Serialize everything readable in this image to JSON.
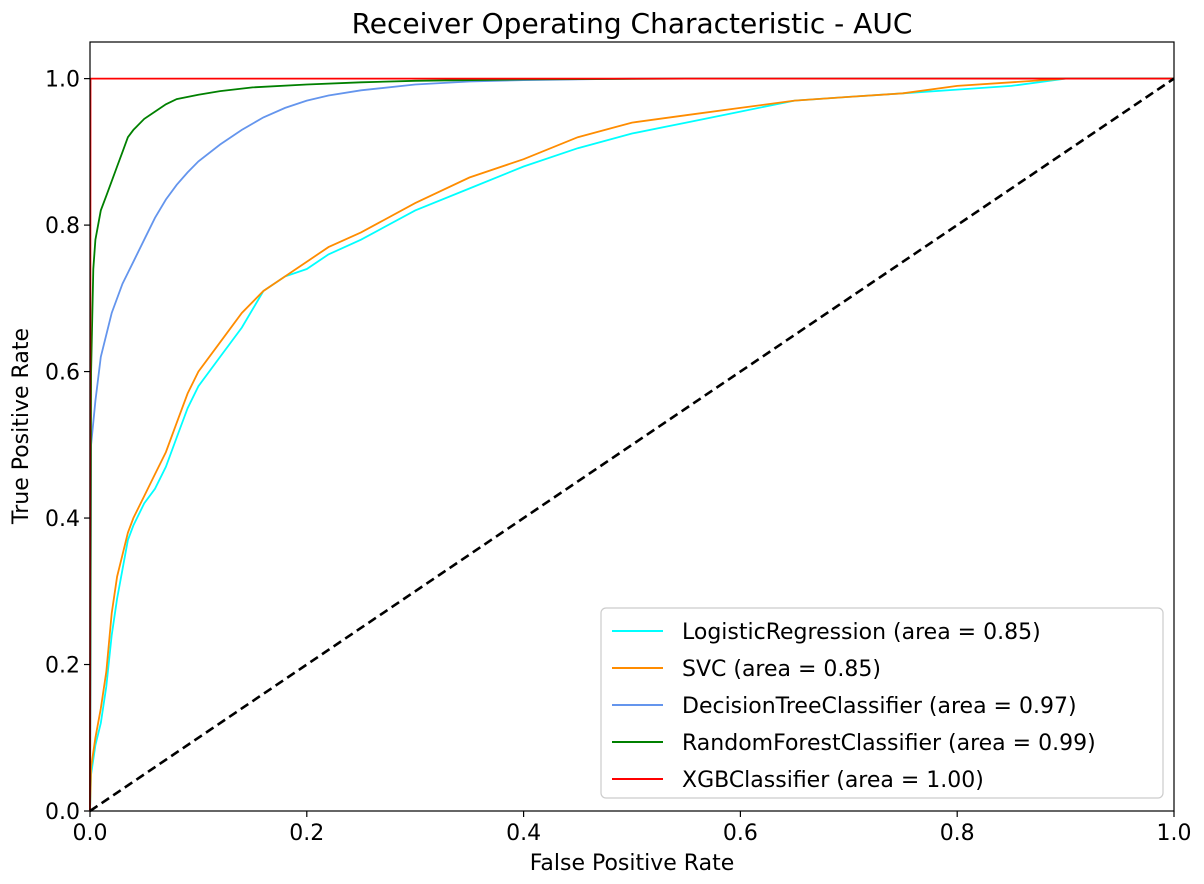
{
  "chart_data": {
    "type": "line",
    "title": "Receiver Operating Characteristic - AUC",
    "xlabel": "False Positive Rate",
    "ylabel": "True Positive Rate",
    "xlim": [
      0.0,
      1.0
    ],
    "ylim": [
      0.0,
      1.05
    ],
    "xticks": [
      "0.0",
      "0.2",
      "0.4",
      "0.6",
      "0.8",
      "1.0"
    ],
    "yticks": [
      "0.0",
      "0.2",
      "0.4",
      "0.6",
      "0.8",
      "1.0"
    ],
    "grid": false,
    "legend_position": "lower-right",
    "series": [
      {
        "name": "LogisticRegression (area = 0.85)",
        "color": "#00ffff",
        "x": [
          0,
          0.001,
          0.005,
          0.01,
          0.015,
          0.02,
          0.025,
          0.03,
          0.035,
          0.04,
          0.05,
          0.06,
          0.07,
          0.08,
          0.09,
          0.1,
          0.12,
          0.14,
          0.16,
          0.18,
          0.2,
          0.22,
          0.25,
          0.3,
          0.35,
          0.4,
          0.45,
          0.5,
          0.55,
          0.6,
          0.65,
          0.7,
          0.75,
          0.8,
          0.85,
          0.9,
          1.0
        ],
        "y": [
          0,
          0.05,
          0.09,
          0.12,
          0.17,
          0.24,
          0.29,
          0.33,
          0.37,
          0.39,
          0.42,
          0.44,
          0.47,
          0.51,
          0.55,
          0.58,
          0.62,
          0.66,
          0.71,
          0.73,
          0.74,
          0.76,
          0.78,
          0.82,
          0.85,
          0.88,
          0.905,
          0.925,
          0.94,
          0.955,
          0.97,
          0.975,
          0.98,
          0.985,
          0.99,
          1.0,
          1.0
        ]
      },
      {
        "name": "SVC (area = 0.85)",
        "color": "#ff8c00",
        "x": [
          0,
          0.001,
          0.005,
          0.01,
          0.015,
          0.02,
          0.025,
          0.03,
          0.035,
          0.04,
          0.05,
          0.06,
          0.07,
          0.08,
          0.09,
          0.1,
          0.12,
          0.14,
          0.16,
          0.18,
          0.2,
          0.22,
          0.25,
          0.3,
          0.35,
          0.4,
          0.45,
          0.5,
          0.55,
          0.6,
          0.65,
          0.7,
          0.75,
          0.8,
          0.85,
          0.9,
          1.0
        ],
        "y": [
          0,
          0.06,
          0.1,
          0.14,
          0.19,
          0.27,
          0.32,
          0.35,
          0.38,
          0.4,
          0.43,
          0.46,
          0.49,
          0.53,
          0.57,
          0.6,
          0.64,
          0.68,
          0.71,
          0.73,
          0.75,
          0.77,
          0.79,
          0.83,
          0.865,
          0.89,
          0.92,
          0.94,
          0.95,
          0.96,
          0.97,
          0.975,
          0.98,
          0.99,
          0.995,
          1.0,
          1.0
        ]
      },
      {
        "name": "DecisionTreeClassifier (area = 0.97)",
        "color": "#6495ed",
        "x": [
          0,
          0.001,
          0.005,
          0.01,
          0.02,
          0.03,
          0.04,
          0.05,
          0.06,
          0.07,
          0.08,
          0.09,
          0.1,
          0.12,
          0.14,
          0.16,
          0.18,
          0.2,
          0.22,
          0.25,
          0.3,
          0.35,
          0.4,
          0.5,
          1.0
        ],
        "y": [
          0,
          0.5,
          0.56,
          0.62,
          0.68,
          0.72,
          0.75,
          0.78,
          0.81,
          0.835,
          0.855,
          0.872,
          0.887,
          0.91,
          0.93,
          0.947,
          0.96,
          0.97,
          0.977,
          0.984,
          0.992,
          0.996,
          0.998,
          1.0,
          1.0
        ]
      },
      {
        "name": "RandomForestClassifier (area = 0.99)",
        "color": "#008000",
        "x": [
          0,
          0.001,
          0.003,
          0.005,
          0.01,
          0.015,
          0.02,
          0.025,
          0.03,
          0.035,
          0.04,
          0.05,
          0.06,
          0.07,
          0.08,
          0.1,
          0.12,
          0.15,
          0.2,
          0.25,
          0.3,
          0.4,
          0.55,
          1.0
        ],
        "y": [
          0,
          0.6,
          0.74,
          0.78,
          0.82,
          0.84,
          0.86,
          0.88,
          0.9,
          0.92,
          0.93,
          0.945,
          0.955,
          0.965,
          0.972,
          0.978,
          0.983,
          0.988,
          0.992,
          0.995,
          0.997,
          0.999,
          1.0,
          1.0
        ]
      },
      {
        "name": "XGBClassifier (area = 1.00)",
        "color": "#ff0000",
        "x": [
          0,
          0.0005,
          1.0
        ],
        "y": [
          0,
          1.0,
          1.0
        ]
      },
      {
        "color": "#000000",
        "dashed": true,
        "x": [
          0,
          1.0
        ],
        "y": [
          0,
          1.0
        ]
      }
    ]
  }
}
